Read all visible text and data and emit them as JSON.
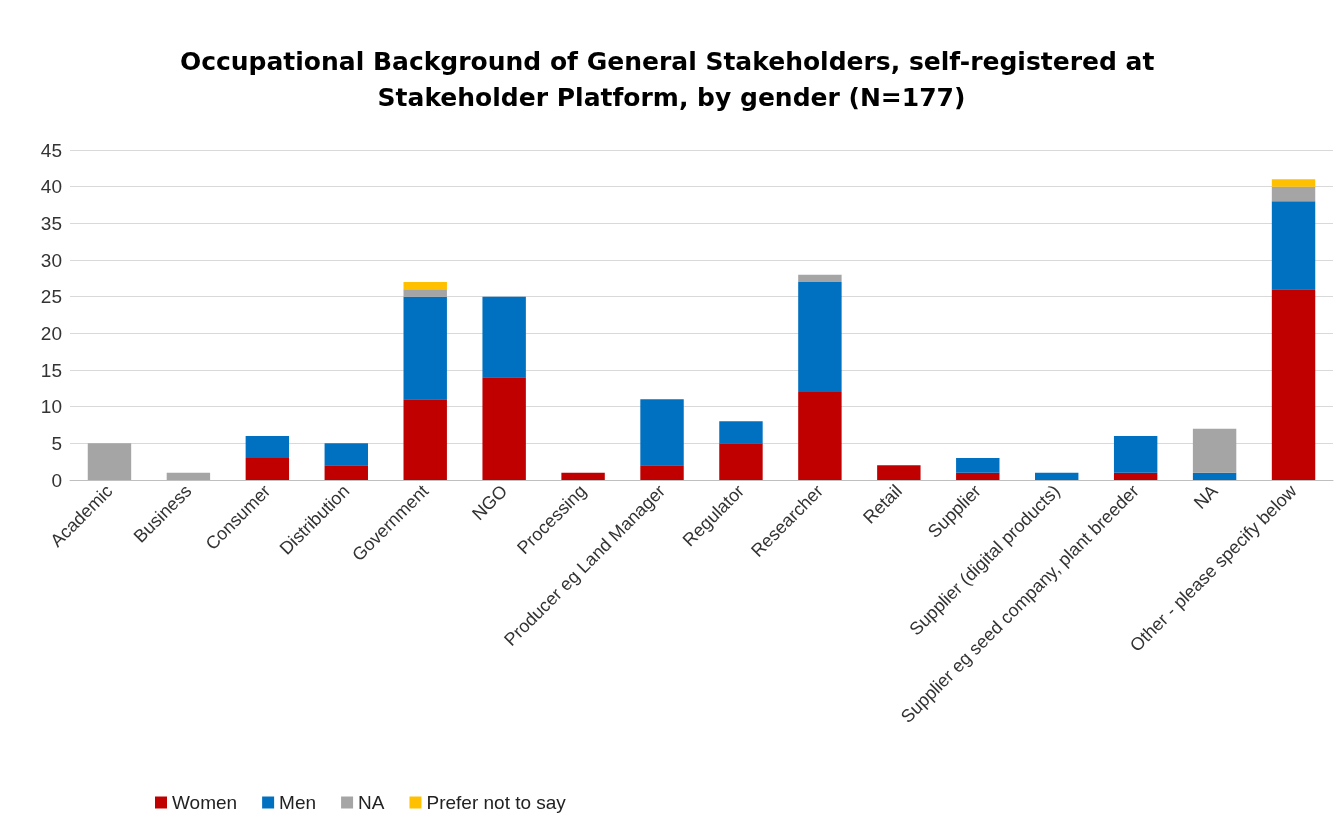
{
  "chart_data": {
    "type": "bar",
    "stacked": true,
    "title": "Occupational Background of General Stakeholders, self-registered at Stakeholder Platform, by gender (N=177)",
    "categories": [
      "Academic",
      "Business",
      "Consumer",
      "Distribution",
      "Government",
      "NGO",
      "Processing",
      "Producer eg Land Manager",
      "Regulator",
      "Researcher",
      "Retail",
      "Supplier",
      "Supplier (digital products)",
      "Supplier eg seed company, plant breeder",
      "NA",
      "Other - please specify below"
    ],
    "series": [
      {
        "name": "Women",
        "color": "#c00000",
        "values": [
          0,
          0,
          3,
          2,
          11,
          14,
          1,
          2,
          5,
          12,
          2,
          1,
          0,
          1,
          0,
          26
        ]
      },
      {
        "name": "Men",
        "color": "#0070c0",
        "values": [
          0,
          0,
          3,
          3,
          14,
          11,
          0,
          9,
          3,
          15,
          0,
          2,
          1,
          5,
          1,
          12
        ]
      },
      {
        "name": "NA",
        "color": "#a5a5a5",
        "values": [
          5,
          1,
          0,
          0,
          1,
          0,
          0,
          0,
          0,
          1,
          0,
          0,
          0,
          0,
          6,
          2
        ]
      },
      {
        "name": "Prefer not to say",
        "color": "#ffc000",
        "values": [
          0,
          0,
          0,
          0,
          1,
          0,
          0,
          0,
          0,
          0,
          0,
          0,
          0,
          0,
          0,
          1
        ]
      }
    ],
    "ylim": [
      0,
      45
    ],
    "yticks": [
      0,
      5,
      10,
      15,
      20,
      25,
      30,
      35,
      40,
      45
    ],
    "grid": "y",
    "legend": "bottom left"
  }
}
